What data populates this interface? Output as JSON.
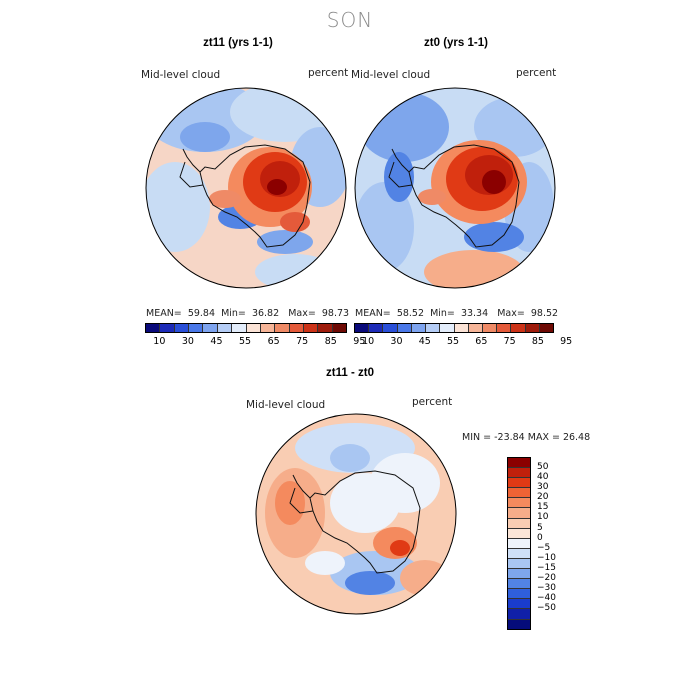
{
  "season_title": "SON",
  "panels": [
    {
      "title": "zt11 (yrs 1-1)",
      "variable": "Mid-level cloud",
      "units": "percent",
      "stats": {
        "mean_label": "MEAN=",
        "mean": "59.84",
        "min_label": "Min=",
        "min": "36.82",
        "max_label": "Max=",
        "max": "98.73"
      }
    },
    {
      "title": "zt0 (yrs 1-1)",
      "variable": "Mid-level cloud",
      "units": "percent",
      "stats": {
        "mean_label": "MEAN=",
        "mean": "58.52",
        "min_label": "Min=",
        "min": "33.34",
        "max_label": "Max=",
        "max": "98.52"
      }
    },
    {
      "title": "zt11 - zt0",
      "variable": "Mid-level cloud",
      "units": "percent",
      "minmax": "MIN = -23.84  MAX =   26.48"
    }
  ],
  "abs_colorbar": {
    "colors": [
      "#0a0a7a",
      "#1d2bb8",
      "#2a4fd8",
      "#4a78e8",
      "#7ea4ef",
      "#b5cdf6",
      "#e3edfb",
      "#fbe3d6",
      "#f6b598",
      "#ef8a66",
      "#e45a3a",
      "#cc3318",
      "#9e1c0c",
      "#6e0a04"
    ],
    "tick_labels": [
      "10",
      "30",
      "45",
      "55",
      "65",
      "75",
      "85",
      "95"
    ]
  },
  "diff_colorbar": {
    "colors": [
      "#8b0000",
      "#c0200c",
      "#e03a15",
      "#ee6335",
      "#f48a5e",
      "#f6ad8a",
      "#f9cdb3",
      "#fbe5d7",
      "#eef3fb",
      "#cfe0f7",
      "#a9c6f2",
      "#7ea6ec",
      "#5283e4",
      "#2f5fdc",
      "#1a3ccc",
      "#1020a8",
      "#050c7a"
    ],
    "tick_labels": [
      "50",
      "40",
      "30",
      "20",
      "15",
      "10",
      "5",
      "0",
      "−5",
      "−10",
      "−15",
      "−20",
      "−30",
      "−40",
      "−50"
    ]
  },
  "colors": {
    "ocean_pale_red": "#f7d4c2",
    "ocean_pale_blue": "#c8dcf4",
    "strong_red": "#d83a18",
    "strong_blue": "#3b67d8"
  }
}
